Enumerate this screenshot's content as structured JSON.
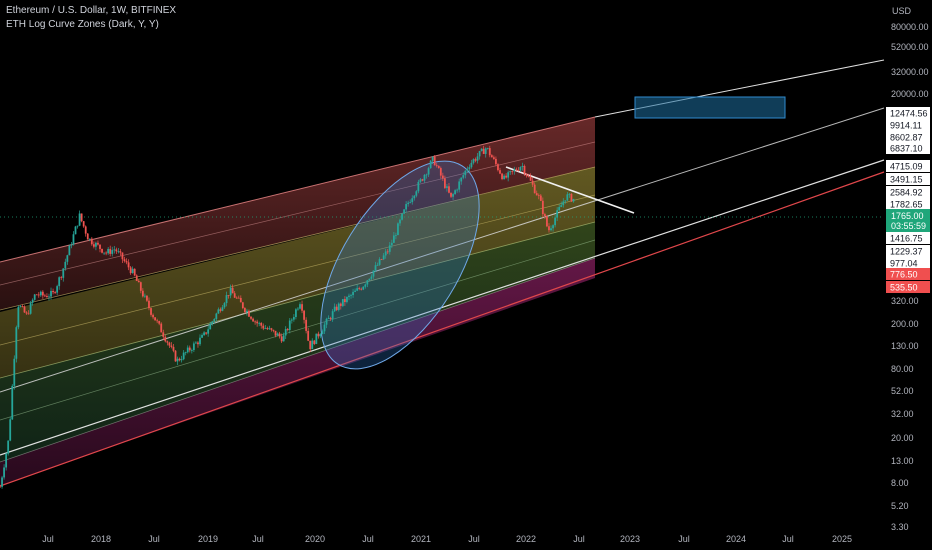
{
  "header": {
    "title": "Ethereum / U.S. Dollar, 1W, BITFINEX",
    "indicator": "ETH Log Curve Zones (Dark, Y, Y)"
  },
  "price_scale": {
    "currency": "USD",
    "ticks": [
      "80000.00",
      "52000.00",
      "32000.00",
      "20000.00",
      "13.00",
      "8.00",
      "5.20",
      "3.30",
      "320.00",
      "200.00",
      "130.00",
      "80.00",
      "52.00",
      "32.00",
      "20.00"
    ],
    "labels": [
      {
        "text": "12474.56",
        "style": "white"
      },
      {
        "text": "9914.11",
        "style": "white"
      },
      {
        "text": "8602.87",
        "style": "white"
      },
      {
        "text": "6837.10",
        "style": "white"
      },
      {
        "text": "4715.09",
        "style": "white"
      },
      {
        "text": "3491.15",
        "style": "white"
      },
      {
        "text": "2584.92",
        "style": "white"
      },
      {
        "text": "1782.65",
        "style": "white"
      },
      {
        "text": "1416.75",
        "style": "white"
      },
      {
        "text": "1229.37",
        "style": "white"
      },
      {
        "text": "977.04",
        "style": "white"
      },
      {
        "text": "776.50",
        "style": "red"
      },
      {
        "text": "535.50",
        "style": "red"
      }
    ],
    "current_price": "1765.00",
    "countdown": "03:55:59"
  },
  "time_axis": {
    "labels": [
      "Jul",
      "2018",
      "Jul",
      "2019",
      "Jul",
      "2020",
      "Jul",
      "2021",
      "Jul",
      "2022",
      "Jul",
      "2023",
      "Jul",
      "2024",
      "Jul",
      "2025"
    ]
  },
  "colors": {
    "up": "#26a69a",
    "down": "#ef5350",
    "current": "#1fa67a",
    "red_label": "#f04f4f",
    "band_top": "#e35a5a",
    "band_yellow": "#d8c44a",
    "band_green": "#8bc34a",
    "band_bottom": "#c62e8c",
    "ellipse": "#2f7fd6",
    "box": "#1e6fa0"
  },
  "chart_data": {
    "type": "candlestick",
    "symbol": "ETH/USD",
    "interval": "1W",
    "exchange": "BITFINEX",
    "scale": "log",
    "ylim": [
      3.3,
      80000
    ],
    "xlim": [
      "2017-04",
      "2025-07"
    ],
    "price_path": [
      {
        "date": "2017-04",
        "close": 8
      },
      {
        "date": "2017-05",
        "close": 20
      },
      {
        "date": "2017-06",
        "close": 250
      },
      {
        "date": "2017-07",
        "close": 200
      },
      {
        "date": "2017-08",
        "close": 300
      },
      {
        "date": "2017-09",
        "close": 290
      },
      {
        "date": "2017-10",
        "close": 300
      },
      {
        "date": "2017-11",
        "close": 450
      },
      {
        "date": "2018-01",
        "close": 1300
      },
      {
        "date": "2018-02",
        "close": 850
      },
      {
        "date": "2018-04",
        "close": 650
      },
      {
        "date": "2018-05",
        "close": 700
      },
      {
        "date": "2018-07",
        "close": 450
      },
      {
        "date": "2018-09",
        "close": 220
      },
      {
        "date": "2018-11",
        "close": 120
      },
      {
        "date": "2018-12",
        "close": 85
      },
      {
        "date": "2019-03",
        "close": 135
      },
      {
        "date": "2019-06",
        "close": 320
      },
      {
        "date": "2019-09",
        "close": 175
      },
      {
        "date": "2019-12",
        "close": 130
      },
      {
        "date": "2020-02",
        "close": 270
      },
      {
        "date": "2020-03",
        "close": 110
      },
      {
        "date": "2020-06",
        "close": 230
      },
      {
        "date": "2020-09",
        "close": 350
      },
      {
        "date": "2020-12",
        "close": 700
      },
      {
        "date": "2021-02",
        "close": 1600
      },
      {
        "date": "2021-05",
        "close": 3800
      },
      {
        "date": "2021-07",
        "close": 1800
      },
      {
        "date": "2021-09",
        "close": 3400
      },
      {
        "date": "2021-11",
        "close": 4700
      },
      {
        "date": "2022-01",
        "close": 2600
      },
      {
        "date": "2022-03",
        "close": 3400
      },
      {
        "date": "2022-05",
        "close": 1800
      },
      {
        "date": "2022-06",
        "close": 980
      },
      {
        "date": "2022-08",
        "close": 1900
      },
      {
        "date": "2022-09",
        "close": 1765
      }
    ],
    "last_price": 1765.0,
    "zones": [
      {
        "name": "top",
        "color": "#e35a5a"
      },
      {
        "name": "upper-mid",
        "color": "#d8c44a"
      },
      {
        "name": "lower-mid",
        "color": "#8bc34a"
      },
      {
        "name": "bottom",
        "color": "#c62e8c"
      }
    ],
    "annotations": [
      {
        "type": "ellipse",
        "from": "2020-03",
        "to": "2021-07"
      },
      {
        "type": "trendline",
        "from": {
          "date": "2021-11",
          "price": 4700
        },
        "to": {
          "date": "2022-10",
          "price": 1650
        }
      },
      {
        "type": "rectangle",
        "from": {
          "date": "2023-01",
          "price": 11000
        },
        "to": {
          "date": "2024-06",
          "price": 19000
        }
      }
    ]
  }
}
